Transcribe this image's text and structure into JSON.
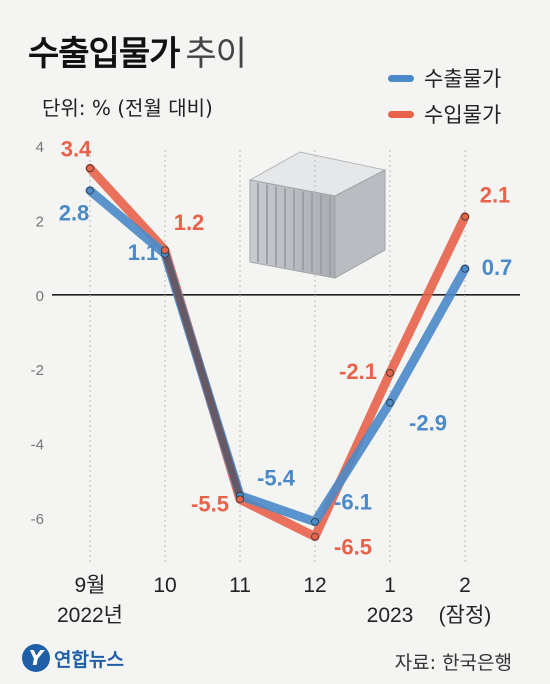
{
  "header": {
    "title_main": "수출입물가",
    "title_sub": "추이",
    "unit": "단위: % (전월 대비)"
  },
  "legend": {
    "export_label": "수출물가",
    "import_label": "수입물가"
  },
  "footer": {
    "logo_text": "연합뉴스",
    "logo_mark": "Y",
    "source": "자료: 한국은행"
  },
  "colors": {
    "export": "#4a8ac8",
    "import": "#e8624a",
    "overlap": "#6b4a4a"
  },
  "chart_data": {
    "type": "line",
    "categories": [
      "9월",
      "10",
      "11",
      "12",
      "1",
      "2"
    ],
    "category_sublabels": [
      "2022년",
      "",
      "",
      "",
      "2023",
      "(잠정)"
    ],
    "ylim": [
      -6,
      4
    ],
    "yticks": [
      4,
      2,
      0,
      -2,
      -4,
      -6
    ],
    "ytick_labels": [
      "4",
      "2",
      "0",
      "-2",
      "-4",
      "-6"
    ],
    "series": [
      {
        "name": "수출물가",
        "values": [
          2.8,
          1.1,
          -5.4,
          -6.1,
          -2.9,
          0.7
        ],
        "labels": [
          "2.8",
          "1.1",
          "-5.4",
          "-6.1",
          "-2.9",
          "0.7"
        ]
      },
      {
        "name": "수입물가",
        "values": [
          3.4,
          1.2,
          -5.5,
          -6.5,
          -2.1,
          2.1
        ],
        "labels": [
          "3.4",
          "1.2",
          "-5.5",
          "-6.5",
          "-2.1",
          "2.1"
        ]
      }
    ]
  }
}
